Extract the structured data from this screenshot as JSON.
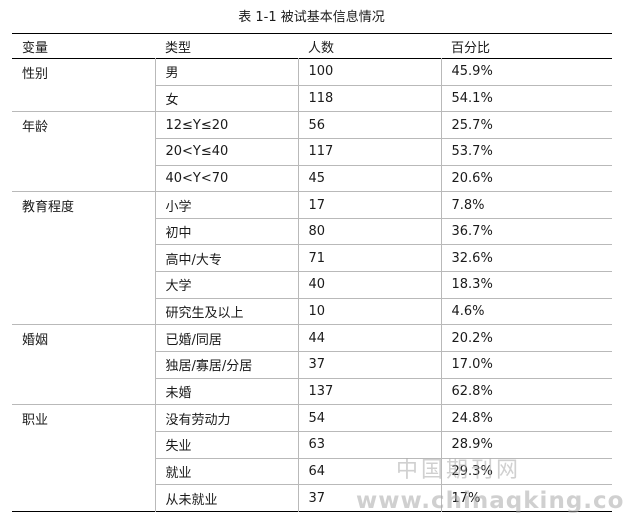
{
  "caption": "表 1-1 被试基本信息情况",
  "headers": [
    "变量",
    "类型",
    "人数",
    "百分比"
  ],
  "rows": [
    {
      "variable": "性别",
      "type": "男",
      "count": "100",
      "percent": "45.9%"
    },
    {
      "variable": "",
      "type": "女",
      "count": "118",
      "percent": "54.1%"
    },
    {
      "variable": "年龄",
      "type": "12≤Y≤20",
      "count": "56",
      "percent": "25.7%"
    },
    {
      "variable": "",
      "type": "20<Y≤40",
      "count": "117",
      "percent": "53.7%"
    },
    {
      "variable": "",
      "type": "40<Y<70",
      "count": "45",
      "percent": "20.6%"
    },
    {
      "variable": "教育程度",
      "type": "小学",
      "count": "17",
      "percent": "7.8%"
    },
    {
      "variable": "",
      "type": "初中",
      "count": "80",
      "percent": "36.7%"
    },
    {
      "variable": "",
      "type": "高中/大专",
      "count": "71",
      "percent": "32.6%"
    },
    {
      "variable": "",
      "type": "大学",
      "count": "40",
      "percent": "18.3%"
    },
    {
      "variable": "",
      "type": "研究生及以上",
      "count": "10",
      "percent": "4.6%"
    },
    {
      "variable": "婚姻",
      "type": "已婚/同居",
      "count": "44",
      "percent": "20.2%"
    },
    {
      "variable": "",
      "type": "独居/寡居/分居",
      "count": "37",
      "percent": "17.0%"
    },
    {
      "variable": "",
      "type": "未婚",
      "count": "137",
      "percent": "62.8%"
    },
    {
      "variable": "职业",
      "type": "没有劳动力",
      "count": "54",
      "percent": "24.8%"
    },
    {
      "variable": "",
      "type": "失业",
      "count": "63",
      "percent": "28.9%"
    },
    {
      "variable": "",
      "type": "就业",
      "count": "64",
      "percent": "29.3%"
    },
    {
      "variable": "",
      "type": "从未就业",
      "count": "37",
      "percent": "17%"
    }
  ],
  "watermark": {
    "text_cn": "中国期刊网",
    "text_url": "www.chinaqking.com"
  }
}
